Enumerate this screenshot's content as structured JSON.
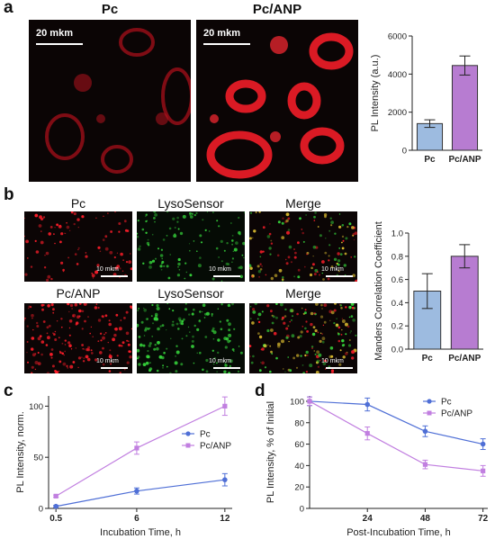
{
  "panels": {
    "a": "a",
    "b": "b",
    "c": "c",
    "d": "d"
  },
  "panel_a": {
    "image_titles": [
      "Pc",
      "Pc/ANP"
    ],
    "scalebar_label": "20 mkm"
  },
  "panel_b": {
    "column_titles_row1": [
      "Pc",
      "LysoSensor",
      "Merge"
    ],
    "column_titles_row2": [
      "Pc/ANP",
      "LysoSensor",
      "Merge"
    ],
    "scalebar_label": "10 mkm"
  },
  "colors": {
    "pc": "#9dbbe0",
    "pc_anp": "#b77cd1",
    "line_pc": "#4f6fd6",
    "line_pc_anp": "#c17fe0",
    "red_signal": "#ff1e2a",
    "green_signal": "#35d03a"
  },
  "chart_data": [
    {
      "id": "a",
      "type": "bar",
      "categories": [
        "Pc",
        "Pc/ANP"
      ],
      "values": [
        1400,
        4450
      ],
      "errors": [
        200,
        500
      ],
      "ylabel": "PL Intensity (a.u.)",
      "ylim": [
        0,
        6000
      ],
      "yticks": [
        0,
        2000,
        4000,
        6000
      ]
    },
    {
      "id": "b",
      "type": "bar",
      "categories": [
        "Pc",
        "Pc/ANP"
      ],
      "values": [
        0.5,
        0.8
      ],
      "errors": [
        0.15,
        0.1
      ],
      "ylabel": "Manders Correlation Coefficient",
      "ylim": [
        0,
        1.0
      ],
      "yticks": [
        0.0,
        0.2,
        0.4,
        0.6,
        0.8,
        1.0
      ],
      "ytick_labels": [
        "0.0",
        "0.2",
        "0.4",
        "0.6",
        "0.8",
        "1.0"
      ]
    },
    {
      "id": "c",
      "type": "line",
      "x": [
        0.5,
        6,
        12
      ],
      "series": [
        {
          "name": "Pc",
          "values": [
            2,
            17,
            28
          ],
          "errors": [
            1,
            3,
            6
          ]
        },
        {
          "name": "Pc/ANP",
          "values": [
            12,
            59,
            100
          ],
          "errors": [
            1,
            6,
            9
          ]
        }
      ],
      "xlabel": "Incubation Time, h",
      "ylabel": "PL Intensity, norm.",
      "xlim": [
        0,
        12.5
      ],
      "ylim": [
        0,
        110
      ],
      "xticks": [
        0.5,
        6,
        12
      ],
      "yticks": [
        0,
        50,
        100
      ],
      "legend": "right"
    },
    {
      "id": "d",
      "type": "line",
      "x": [
        0,
        24,
        48,
        72
      ],
      "series": [
        {
          "name": "Pc",
          "values": [
            100,
            97,
            72,
            60
          ],
          "errors": [
            4,
            6,
            5,
            5
          ]
        },
        {
          "name": "Pc/ANP",
          "values": [
            100,
            70,
            41,
            35
          ],
          "errors": [
            4,
            6,
            4,
            5
          ]
        }
      ],
      "xlabel": "Post-Incubation Time, h",
      "ylabel": "PL Intensity, % of Initial",
      "xlim": [
        0,
        74
      ],
      "ylim": [
        0,
        105
      ],
      "xticks": [
        24,
        48,
        72
      ],
      "yticks": [
        0,
        20,
        40,
        60,
        80,
        100
      ],
      "legend": "top-right"
    }
  ]
}
